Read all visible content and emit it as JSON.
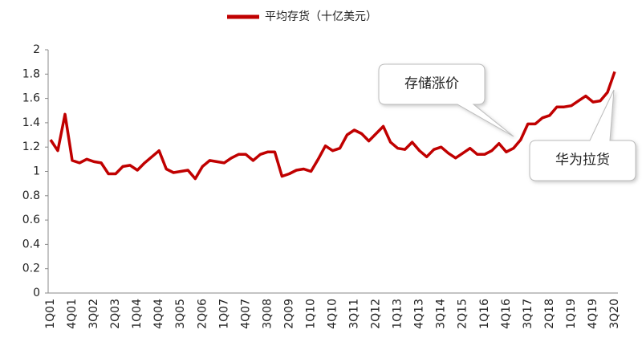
{
  "chart_data": {
    "type": "line",
    "categories": [
      "1Q01",
      null,
      null,
      "4Q01",
      null,
      null,
      "3Q02",
      null,
      null,
      "2Q03",
      null,
      null,
      "1Q04",
      null,
      null,
      "4Q04",
      null,
      null,
      "3Q05",
      null,
      null,
      "2Q06",
      null,
      null,
      "1Q07",
      null,
      null,
      "4Q07",
      null,
      null,
      "3Q08",
      null,
      null,
      "2Q09",
      null,
      null,
      "1Q10",
      null,
      null,
      "4Q10",
      null,
      null,
      "3Q11",
      null,
      null,
      "2Q12",
      null,
      null,
      "1Q13",
      null,
      null,
      "4Q13",
      null,
      null,
      "3Q14",
      null,
      null,
      "2Q15",
      null,
      null,
      "1Q16",
      null,
      null,
      "4Q16",
      null,
      null,
      "3Q17",
      null,
      null,
      "2Q18",
      null,
      null,
      "1Q19",
      null,
      null,
      "4Q19",
      null,
      null,
      "3Q20"
    ],
    "series": [
      {
        "name": "平均存货（十亿美元）",
        "color": "#c00000",
        "values": [
          1.26,
          1.17,
          1.47,
          1.09,
          1.07,
          1.1,
          1.08,
          1.07,
          0.98,
          0.98,
          1.04,
          1.05,
          1.01,
          1.07,
          1.12,
          1.17,
          1.02,
          0.99,
          1.0,
          1.01,
          0.94,
          1.04,
          1.09,
          1.08,
          1.07,
          1.11,
          1.14,
          1.14,
          1.09,
          1.14,
          1.16,
          1.16,
          0.96,
          0.98,
          1.01,
          1.02,
          1.0,
          1.1,
          1.21,
          1.17,
          1.19,
          1.3,
          1.34,
          1.31,
          1.25,
          1.31,
          1.37,
          1.24,
          1.19,
          1.18,
          1.24,
          1.17,
          1.12,
          1.18,
          1.2,
          1.15,
          1.11,
          1.15,
          1.19,
          1.14,
          1.14,
          1.17,
          1.23,
          1.16,
          1.19,
          1.26,
          1.39,
          1.39,
          1.44,
          1.46,
          1.53,
          1.53,
          1.54,
          1.58,
          1.62,
          1.57,
          1.58,
          1.65,
          1.82
        ]
      }
    ],
    "ylim": [
      0,
      2
    ],
    "yticks": [
      0,
      0.2,
      0.4,
      0.6,
      0.8,
      1,
      1.2,
      1.4,
      1.6,
      1.8,
      2
    ],
    "grid": false,
    "legend": "top",
    "annotations": [
      "存储涨价",
      "华为拉货"
    ]
  }
}
